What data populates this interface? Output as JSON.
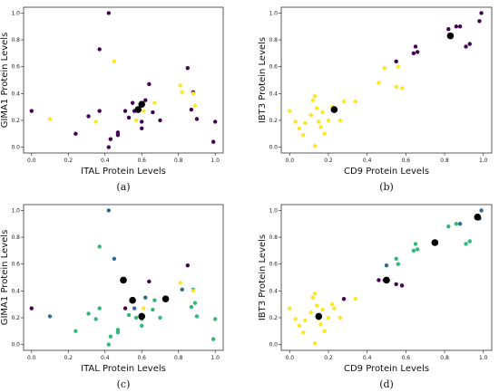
{
  "chart_data": [
    {
      "id": "a",
      "type": "scatter",
      "caption": "(a)",
      "xlabel": "ITAL Protein Levels",
      "ylabel": "GIMA1 Protein Levels",
      "xlim": [
        0,
        1
      ],
      "ylim": [
        0,
        1
      ],
      "xticks": [
        "0.0",
        "0.2",
        "0.4",
        "0.6",
        "0.8",
        "1.0"
      ],
      "yticks": [
        "0.0",
        "0.2",
        "0.4",
        "0.6",
        "0.8",
        "1.0"
      ],
      "colors": {
        "c0": "#440154",
        "c1": "#fde725",
        "center": "#000000"
      },
      "points": [
        {
          "x": 0.0,
          "y": 0.27,
          "c": "c0"
        },
        {
          "x": 0.1,
          "y": 0.21,
          "c": "c1"
        },
        {
          "x": 0.24,
          "y": 0.1,
          "c": "c0"
        },
        {
          "x": 0.31,
          "y": 0.23,
          "c": "c0"
        },
        {
          "x": 0.35,
          "y": 0.19,
          "c": "c1"
        },
        {
          "x": 0.37,
          "y": 0.73,
          "c": "c0"
        },
        {
          "x": 0.37,
          "y": 0.27,
          "c": "c0"
        },
        {
          "x": 0.42,
          "y": 1.0,
          "c": "c0"
        },
        {
          "x": 0.42,
          "y": 0.0,
          "c": "c0"
        },
        {
          "x": 0.43,
          "y": 0.06,
          "c": "c0"
        },
        {
          "x": 0.45,
          "y": 0.64,
          "c": "c1"
        },
        {
          "x": 0.47,
          "y": 0.11,
          "c": "c0"
        },
        {
          "x": 0.47,
          "y": 0.09,
          "c": "c0"
        },
        {
          "x": 0.51,
          "y": 0.27,
          "c": "c0"
        },
        {
          "x": 0.53,
          "y": 0.22,
          "c": "c0"
        },
        {
          "x": 0.55,
          "y": 0.33,
          "c": "c0"
        },
        {
          "x": 0.56,
          "y": 0.27,
          "c": "c0"
        },
        {
          "x": 0.57,
          "y": 0.2,
          "c": "c1"
        },
        {
          "x": 0.6,
          "y": 0.14,
          "c": "c0"
        },
        {
          "x": 0.6,
          "y": 0.19,
          "c": "c0"
        },
        {
          "x": 0.61,
          "y": 0.27,
          "c": "c1"
        },
        {
          "x": 0.62,
          "y": 0.35,
          "c": "c0"
        },
        {
          "x": 0.64,
          "y": 0.47,
          "c": "c0"
        },
        {
          "x": 0.66,
          "y": 0.26,
          "c": "c0"
        },
        {
          "x": 0.67,
          "y": 0.33,
          "c": "c1"
        },
        {
          "x": 0.7,
          "y": 0.2,
          "c": "c0"
        },
        {
          "x": 0.81,
          "y": 0.46,
          "c": "c1"
        },
        {
          "x": 0.82,
          "y": 0.41,
          "c": "c1"
        },
        {
          "x": 0.85,
          "y": 0.59,
          "c": "c0"
        },
        {
          "x": 0.87,
          "y": 0.28,
          "c": "c0"
        },
        {
          "x": 0.88,
          "y": 0.41,
          "c": "c0"
        },
        {
          "x": 0.88,
          "y": 0.4,
          "c": "c1"
        },
        {
          "x": 0.89,
          "y": 0.31,
          "c": "c1"
        },
        {
          "x": 0.9,
          "y": 0.21,
          "c": "c0"
        },
        {
          "x": 0.99,
          "y": 0.04,
          "c": "c0"
        },
        {
          "x": 1.0,
          "y": 0.19,
          "c": "c0"
        }
      ],
      "centers": [
        {
          "x": 0.58,
          "y": 0.28
        },
        {
          "x": 0.6,
          "y": 0.32
        }
      ]
    },
    {
      "id": "b",
      "type": "scatter",
      "caption": "(b)",
      "xlabel": "CD9 Protein Levels",
      "ylabel": "IBT3 Protein Levels",
      "xlim": [
        0,
        1
      ],
      "ylim": [
        0,
        1
      ],
      "xticks": [
        "0.0",
        "0.2",
        "0.4",
        "0.6",
        "0.8",
        "1.0"
      ],
      "yticks": [
        "0.0",
        "0.2",
        "0.4",
        "0.6",
        "0.8",
        "1.0"
      ],
      "colors": {
        "c0": "#440154",
        "c1": "#fde725",
        "center": "#000000"
      },
      "points": [
        {
          "x": 0.0,
          "y": 0.27,
          "c": "c1"
        },
        {
          "x": 0.03,
          "y": 0.19,
          "c": "c1"
        },
        {
          "x": 0.05,
          "y": 0.14,
          "c": "c1"
        },
        {
          "x": 0.07,
          "y": 0.09,
          "c": "c1"
        },
        {
          "x": 0.08,
          "y": 0.18,
          "c": "c1"
        },
        {
          "x": 0.11,
          "y": 0.24,
          "c": "c1"
        },
        {
          "x": 0.12,
          "y": 0.35,
          "c": "c1"
        },
        {
          "x": 0.13,
          "y": 0.38,
          "c": "c1"
        },
        {
          "x": 0.13,
          "y": 0.01,
          "c": "c1"
        },
        {
          "x": 0.14,
          "y": 0.29,
          "c": "c1"
        },
        {
          "x": 0.15,
          "y": 0.19,
          "c": "c1"
        },
        {
          "x": 0.16,
          "y": 0.15,
          "c": "c1"
        },
        {
          "x": 0.17,
          "y": 0.26,
          "c": "c1"
        },
        {
          "x": 0.18,
          "y": 0.1,
          "c": "c1"
        },
        {
          "x": 0.2,
          "y": 0.2,
          "c": "c1"
        },
        {
          "x": 0.22,
          "y": 0.3,
          "c": "c1"
        },
        {
          "x": 0.23,
          "y": 0.27,
          "c": "c1"
        },
        {
          "x": 0.26,
          "y": 0.2,
          "c": "c1"
        },
        {
          "x": 0.28,
          "y": 0.34,
          "c": "c1"
        },
        {
          "x": 0.34,
          "y": 0.34,
          "c": "c1"
        },
        {
          "x": 0.46,
          "y": 0.48,
          "c": "c1"
        },
        {
          "x": 0.49,
          "y": 0.59,
          "c": "c1"
        },
        {
          "x": 0.55,
          "y": 0.45,
          "c": "c1"
        },
        {
          "x": 0.56,
          "y": 0.6,
          "c": "c1"
        },
        {
          "x": 0.58,
          "y": 0.44,
          "c": "c1"
        },
        {
          "x": 0.55,
          "y": 0.64,
          "c": "c0"
        },
        {
          "x": 0.64,
          "y": 0.7,
          "c": "c0"
        },
        {
          "x": 0.65,
          "y": 0.75,
          "c": "c0"
        },
        {
          "x": 0.66,
          "y": 0.71,
          "c": "c0"
        },
        {
          "x": 0.82,
          "y": 0.88,
          "c": "c0"
        },
        {
          "x": 0.86,
          "y": 0.9,
          "c": "c0"
        },
        {
          "x": 0.88,
          "y": 0.9,
          "c": "c0"
        },
        {
          "x": 0.91,
          "y": 0.75,
          "c": "c0"
        },
        {
          "x": 0.93,
          "y": 0.77,
          "c": "c0"
        },
        {
          "x": 0.98,
          "y": 0.94,
          "c": "c0"
        },
        {
          "x": 0.99,
          "y": 1.0,
          "c": "c0"
        }
      ],
      "centers": [
        {
          "x": 0.23,
          "y": 0.28
        },
        {
          "x": 0.83,
          "y": 0.83
        }
      ]
    },
    {
      "id": "c",
      "type": "scatter",
      "caption": "(c)",
      "xlabel": "ITAL Protein Levels",
      "ylabel": "GIMA1 Protein Levels",
      "xlim": [
        0,
        1
      ],
      "ylim": [
        0,
        1
      ],
      "xticks": [
        "0.0",
        "0.2",
        "0.4",
        "0.6",
        "0.8",
        "1.0"
      ],
      "yticks": [
        "0.0",
        "0.2",
        "0.4",
        "0.6",
        "0.8",
        "1.0"
      ],
      "colors": {
        "c0": "#440154",
        "c1": "#31688e",
        "c2": "#35b779",
        "c3": "#fde725",
        "center": "#000000"
      },
      "points": [
        {
          "x": 0.0,
          "y": 0.27,
          "c": "c0"
        },
        {
          "x": 0.1,
          "y": 0.21,
          "c": "c1"
        },
        {
          "x": 0.24,
          "y": 0.1,
          "c": "c2"
        },
        {
          "x": 0.31,
          "y": 0.23,
          "c": "c2"
        },
        {
          "x": 0.35,
          "y": 0.19,
          "c": "c2"
        },
        {
          "x": 0.37,
          "y": 0.73,
          "c": "c2"
        },
        {
          "x": 0.37,
          "y": 0.27,
          "c": "c2"
        },
        {
          "x": 0.42,
          "y": 1.0,
          "c": "c1"
        },
        {
          "x": 0.42,
          "y": 0.0,
          "c": "c2"
        },
        {
          "x": 0.43,
          "y": 0.06,
          "c": "c2"
        },
        {
          "x": 0.45,
          "y": 0.64,
          "c": "c1"
        },
        {
          "x": 0.47,
          "y": 0.11,
          "c": "c2"
        },
        {
          "x": 0.47,
          "y": 0.09,
          "c": "c2"
        },
        {
          "x": 0.51,
          "y": 0.27,
          "c": "c0"
        },
        {
          "x": 0.53,
          "y": 0.22,
          "c": "c2"
        },
        {
          "x": 0.55,
          "y": 0.33,
          "c": "c0"
        },
        {
          "x": 0.56,
          "y": 0.27,
          "c": "c1"
        },
        {
          "x": 0.57,
          "y": 0.2,
          "c": "c2"
        },
        {
          "x": 0.6,
          "y": 0.14,
          "c": "c2"
        },
        {
          "x": 0.6,
          "y": 0.19,
          "c": "c2"
        },
        {
          "x": 0.61,
          "y": 0.27,
          "c": "c3"
        },
        {
          "x": 0.62,
          "y": 0.35,
          "c": "c1"
        },
        {
          "x": 0.64,
          "y": 0.47,
          "c": "c0"
        },
        {
          "x": 0.66,
          "y": 0.26,
          "c": "c2"
        },
        {
          "x": 0.67,
          "y": 0.33,
          "c": "c2"
        },
        {
          "x": 0.7,
          "y": 0.2,
          "c": "c2"
        },
        {
          "x": 0.81,
          "y": 0.46,
          "c": "c3"
        },
        {
          "x": 0.82,
          "y": 0.41,
          "c": "c1"
        },
        {
          "x": 0.85,
          "y": 0.59,
          "c": "c0"
        },
        {
          "x": 0.87,
          "y": 0.28,
          "c": "c2"
        },
        {
          "x": 0.88,
          "y": 0.41,
          "c": "c2"
        },
        {
          "x": 0.88,
          "y": 0.4,
          "c": "c3"
        },
        {
          "x": 0.89,
          "y": 0.31,
          "c": "c2"
        },
        {
          "x": 0.9,
          "y": 0.21,
          "c": "c2"
        },
        {
          "x": 0.99,
          "y": 0.04,
          "c": "c2"
        },
        {
          "x": 1.0,
          "y": 0.19,
          "c": "c2"
        }
      ],
      "centers": [
        {
          "x": 0.5,
          "y": 0.48
        },
        {
          "x": 0.55,
          "y": 0.33
        },
        {
          "x": 0.6,
          "y": 0.21
        },
        {
          "x": 0.73,
          "y": 0.34
        }
      ]
    },
    {
      "id": "d",
      "type": "scatter",
      "caption": "(d)",
      "xlabel": "CD9 Protein Levels",
      "ylabel": "IBT3 Protein Levels",
      "xlim": [
        0,
        1
      ],
      "ylim": [
        0,
        1
      ],
      "xticks": [
        "0.0",
        "0.2",
        "0.4",
        "0.6",
        "0.8",
        "1.0"
      ],
      "yticks": [
        "0.0",
        "0.2",
        "0.4",
        "0.6",
        "0.8",
        "1.0"
      ],
      "colors": {
        "c0": "#440154",
        "c1": "#31688e",
        "c2": "#35b779",
        "c3": "#fde725",
        "center": "#000000"
      },
      "points": [
        {
          "x": 0.0,
          "y": 0.27,
          "c": "c3"
        },
        {
          "x": 0.03,
          "y": 0.19,
          "c": "c3"
        },
        {
          "x": 0.05,
          "y": 0.14,
          "c": "c3"
        },
        {
          "x": 0.07,
          "y": 0.09,
          "c": "c3"
        },
        {
          "x": 0.08,
          "y": 0.18,
          "c": "c3"
        },
        {
          "x": 0.11,
          "y": 0.24,
          "c": "c3"
        },
        {
          "x": 0.12,
          "y": 0.35,
          "c": "c3"
        },
        {
          "x": 0.13,
          "y": 0.38,
          "c": "c3"
        },
        {
          "x": 0.13,
          "y": 0.01,
          "c": "c3"
        },
        {
          "x": 0.14,
          "y": 0.29,
          "c": "c3"
        },
        {
          "x": 0.15,
          "y": 0.19,
          "c": "c3"
        },
        {
          "x": 0.16,
          "y": 0.15,
          "c": "c3"
        },
        {
          "x": 0.17,
          "y": 0.26,
          "c": "c3"
        },
        {
          "x": 0.18,
          "y": 0.1,
          "c": "c3"
        },
        {
          "x": 0.2,
          "y": 0.2,
          "c": "c3"
        },
        {
          "x": 0.22,
          "y": 0.3,
          "c": "c3"
        },
        {
          "x": 0.23,
          "y": 0.27,
          "c": "c3"
        },
        {
          "x": 0.26,
          "y": 0.2,
          "c": "c3"
        },
        {
          "x": 0.28,
          "y": 0.34,
          "c": "c0"
        },
        {
          "x": 0.34,
          "y": 0.34,
          "c": "c3"
        },
        {
          "x": 0.46,
          "y": 0.48,
          "c": "c0"
        },
        {
          "x": 0.49,
          "y": 0.48,
          "c": "c0"
        },
        {
          "x": 0.5,
          "y": 0.59,
          "c": "c1"
        },
        {
          "x": 0.55,
          "y": 0.45,
          "c": "c0"
        },
        {
          "x": 0.56,
          "y": 0.6,
          "c": "c2"
        },
        {
          "x": 0.58,
          "y": 0.44,
          "c": "c0"
        },
        {
          "x": 0.55,
          "y": 0.64,
          "c": "c2"
        },
        {
          "x": 0.64,
          "y": 0.7,
          "c": "c2"
        },
        {
          "x": 0.65,
          "y": 0.75,
          "c": "c2"
        },
        {
          "x": 0.66,
          "y": 0.71,
          "c": "c2"
        },
        {
          "x": 0.82,
          "y": 0.88,
          "c": "c2"
        },
        {
          "x": 0.86,
          "y": 0.9,
          "c": "c2"
        },
        {
          "x": 0.88,
          "y": 0.9,
          "c": "c1"
        },
        {
          "x": 0.91,
          "y": 0.75,
          "c": "c2"
        },
        {
          "x": 0.93,
          "y": 0.77,
          "c": "c2"
        },
        {
          "x": 0.98,
          "y": 0.94,
          "c": "c1"
        },
        {
          "x": 0.99,
          "y": 1.0,
          "c": "c1"
        }
      ],
      "centers": [
        {
          "x": 0.15,
          "y": 0.21
        },
        {
          "x": 0.5,
          "y": 0.48
        },
        {
          "x": 0.75,
          "y": 0.76
        },
        {
          "x": 0.97,
          "y": 0.95
        }
      ]
    }
  ]
}
